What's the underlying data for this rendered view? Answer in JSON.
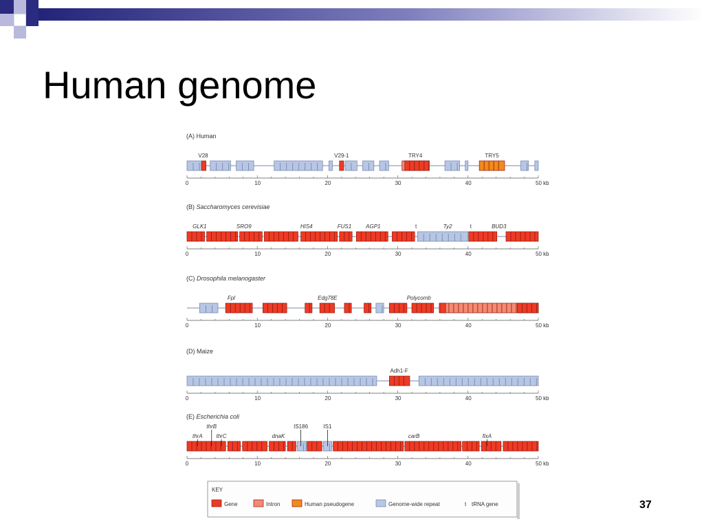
{
  "slide": {
    "title": "Human genome",
    "page_number": "37"
  },
  "colors": {
    "gene": "#ee3b25",
    "intron": "#f58a72",
    "pseudogene": "#f28a1c",
    "repeat": "#b7c6e4",
    "outline": "#8a1a10",
    "axis": "#555555",
    "deco_navy": "#2a2a80",
    "deco_light": "#b9b9dd"
  },
  "diagram": {
    "scale_unit": "kb",
    "tick_labels": [
      "0",
      "10",
      "20",
      "30",
      "40",
      "50 kb"
    ],
    "panels": [
      {
        "id": "human",
        "title_prefix": "(A) ",
        "title_name": "Human",
        "italic": false,
        "features": [
          {
            "type": "repeat",
            "start": 0,
            "end": 2
          },
          {
            "type": "gene",
            "start": 2.1,
            "end": 2.7
          },
          {
            "type": "repeat",
            "start": 3.3,
            "end": 6.2
          },
          {
            "type": "repeat",
            "start": 7.0,
            "end": 9.5
          },
          {
            "type": "repeat",
            "start": 12.4,
            "end": 19.3
          },
          {
            "type": "repeat",
            "start": 20.2,
            "end": 20.7
          },
          {
            "type": "gene",
            "start": 21.7,
            "end": 22.3
          },
          {
            "type": "repeat",
            "start": 22.5,
            "end": 24.2
          },
          {
            "type": "repeat",
            "start": 25.0,
            "end": 26.6
          },
          {
            "type": "repeat",
            "start": 27.4,
            "end": 28.7
          },
          {
            "type": "intron",
            "start": 30.6,
            "end": 34.5
          },
          {
            "type": "gene",
            "start": 31.0,
            "end": 34.4
          },
          {
            "type": "repeat",
            "start": 36.7,
            "end": 38.8
          },
          {
            "type": "repeat",
            "start": 39.6,
            "end": 40.0
          },
          {
            "type": "pseudogene",
            "start": 41.6,
            "end": 45.2
          },
          {
            "type": "repeat",
            "start": 47.5,
            "end": 48.6
          },
          {
            "type": "repeat",
            "start": 49.5,
            "end": 50
          }
        ],
        "labels": [
          {
            "text": "V28",
            "pos": 2.3,
            "italic": false
          },
          {
            "text": "V29-1",
            "pos": 22.0,
            "italic": false
          },
          {
            "text": "TRY4",
            "pos": 32.5,
            "italic": false
          },
          {
            "text": "TRY5",
            "pos": 43.4,
            "italic": false
          }
        ]
      },
      {
        "id": "yeast",
        "title_prefix": "(B) ",
        "title_name": "Saccharomyces cerevisiae",
        "italic": true,
        "features": [
          {
            "type": "gene",
            "start": 0,
            "end": 2.5
          },
          {
            "type": "gene",
            "start": 2.8,
            "end": 7.2
          },
          {
            "type": "gene",
            "start": 7.5,
            "end": 10.7
          },
          {
            "type": "gene",
            "start": 11.0,
            "end": 15.8
          },
          {
            "type": "gene",
            "start": 16.2,
            "end": 21.4
          },
          {
            "type": "gene",
            "start": 21.7,
            "end": 23.5
          },
          {
            "type": "gene",
            "start": 24.1,
            "end": 28.6
          },
          {
            "type": "gene",
            "start": 29.2,
            "end": 32.4
          },
          {
            "type": "repeat",
            "start": 32.8,
            "end": 40.0
          },
          {
            "type": "gene",
            "start": 40.1,
            "end": 44.1
          },
          {
            "type": "gene",
            "start": 45.4,
            "end": 50
          }
        ],
        "labels": [
          {
            "text": "GLK1",
            "pos": 1.8,
            "italic": true
          },
          {
            "text": "SRO9",
            "pos": 8.1,
            "italic": true
          },
          {
            "text": "HIS4",
            "pos": 17.0,
            "italic": true
          },
          {
            "text": "FUS1",
            "pos": 22.4,
            "italic": true
          },
          {
            "text": "AGP1",
            "pos": 26.5,
            "italic": true
          },
          {
            "text": "t",
            "pos": 32.6,
            "italic": false
          },
          {
            "text": "Ty2",
            "pos": 37.1,
            "italic": true
          },
          {
            "text": "t",
            "pos": 40.4,
            "italic": false
          },
          {
            "text": "BUD3",
            "pos": 44.4,
            "italic": true
          }
        ]
      },
      {
        "id": "fly",
        "title_prefix": "(C) ",
        "title_name": "Drosophila melanogaster",
        "italic": true,
        "features": [
          {
            "type": "repeat",
            "start": 1.8,
            "end": 4.4
          },
          {
            "type": "gene",
            "start": 5.5,
            "end": 9.3
          },
          {
            "type": "gene",
            "start": 10.8,
            "end": 14.2
          },
          {
            "type": "gene",
            "start": 16.8,
            "end": 17.8
          },
          {
            "type": "gene",
            "start": 18.9,
            "end": 21.0
          },
          {
            "type": "gene",
            "start": 22.4,
            "end": 23.4
          },
          {
            "type": "gene",
            "start": 25.2,
            "end": 26.2
          },
          {
            "type": "repeat",
            "start": 26.9,
            "end": 28.0
          },
          {
            "type": "gene",
            "start": 28.8,
            "end": 31.3
          },
          {
            "type": "gene",
            "start": 32.0,
            "end": 35.1
          },
          {
            "type": "intron",
            "start": 35.9,
            "end": 50
          },
          {
            "type": "gene",
            "start": 36.0,
            "end": 36.8
          },
          {
            "type": "gene",
            "start": 47.0,
            "end": 50
          }
        ],
        "labels": [
          {
            "text": "Fpl",
            "pos": 6.3,
            "italic": true
          },
          {
            "text": "Edg78E",
            "pos": 20.0,
            "italic": true
          },
          {
            "text": "Polycomb",
            "pos": 33.0,
            "italic": true
          }
        ]
      },
      {
        "id": "maize",
        "title_prefix": "(D) ",
        "title_name": "Maize",
        "italic": false,
        "features": [
          {
            "type": "repeat",
            "start": 0,
            "end": 27.0
          },
          {
            "type": "gene",
            "start": 28.8,
            "end": 31.7
          },
          {
            "type": "repeat",
            "start": 33.0,
            "end": 50
          }
        ],
        "labels": [
          {
            "text": "Adh1-F",
            "pos": 30.2,
            "italic": false
          }
        ]
      },
      {
        "id": "ecoli",
        "title_prefix": "(E) ",
        "title_name": "Escherichia coli",
        "italic": true,
        "features": [
          {
            "type": "gene",
            "start": 0,
            "end": 5.5
          },
          {
            "type": "gene",
            "start": 5.8,
            "end": 7.6
          },
          {
            "type": "gene",
            "start": 7.9,
            "end": 11.4
          },
          {
            "type": "gene",
            "start": 11.7,
            "end": 14.0
          },
          {
            "type": "gene",
            "start": 14.3,
            "end": 15.5
          },
          {
            "type": "repeat",
            "start": 15.7,
            "end": 17.0
          },
          {
            "type": "gene",
            "start": 17.1,
            "end": 19.2
          },
          {
            "type": "repeat",
            "start": 19.4,
            "end": 20.6
          },
          {
            "type": "gene",
            "start": 20.8,
            "end": 30.8
          },
          {
            "type": "gene",
            "start": 31.0,
            "end": 39.0
          },
          {
            "type": "gene",
            "start": 39.2,
            "end": 41.6
          },
          {
            "type": "gene",
            "start": 41.9,
            "end": 44.7
          },
          {
            "type": "gene",
            "start": 45.0,
            "end": 50
          }
        ],
        "labels": [
          {
            "text": "thrA",
            "pos": 1.5,
            "italic": true
          },
          {
            "text": "thrB",
            "pos": 3.5,
            "italic": true,
            "row": 2
          },
          {
            "text": "thrC",
            "pos": 4.9,
            "italic": true
          },
          {
            "text": "dnaK",
            "pos": 13.0,
            "italic": true
          },
          {
            "text": "IS186",
            "pos": 16.2,
            "italic": false,
            "row": 2
          },
          {
            "text": "IS1",
            "pos": 20.0,
            "italic": false,
            "row": 2
          },
          {
            "text": "carB",
            "pos": 32.3,
            "italic": true
          },
          {
            "text": "fixA",
            "pos": 42.7,
            "italic": true
          }
        ]
      }
    ],
    "key": {
      "title": "KEY",
      "items": [
        {
          "label": "Gene",
          "swatch": "gene"
        },
        {
          "label": "Intron",
          "swatch": "intron"
        },
        {
          "label": "Human pseudogene",
          "swatch": "pseudogene"
        },
        {
          "label": "Genome-wide repeat",
          "swatch": "repeat"
        },
        {
          "label": "tRNA gene",
          "symbol": "t"
        }
      ]
    }
  }
}
